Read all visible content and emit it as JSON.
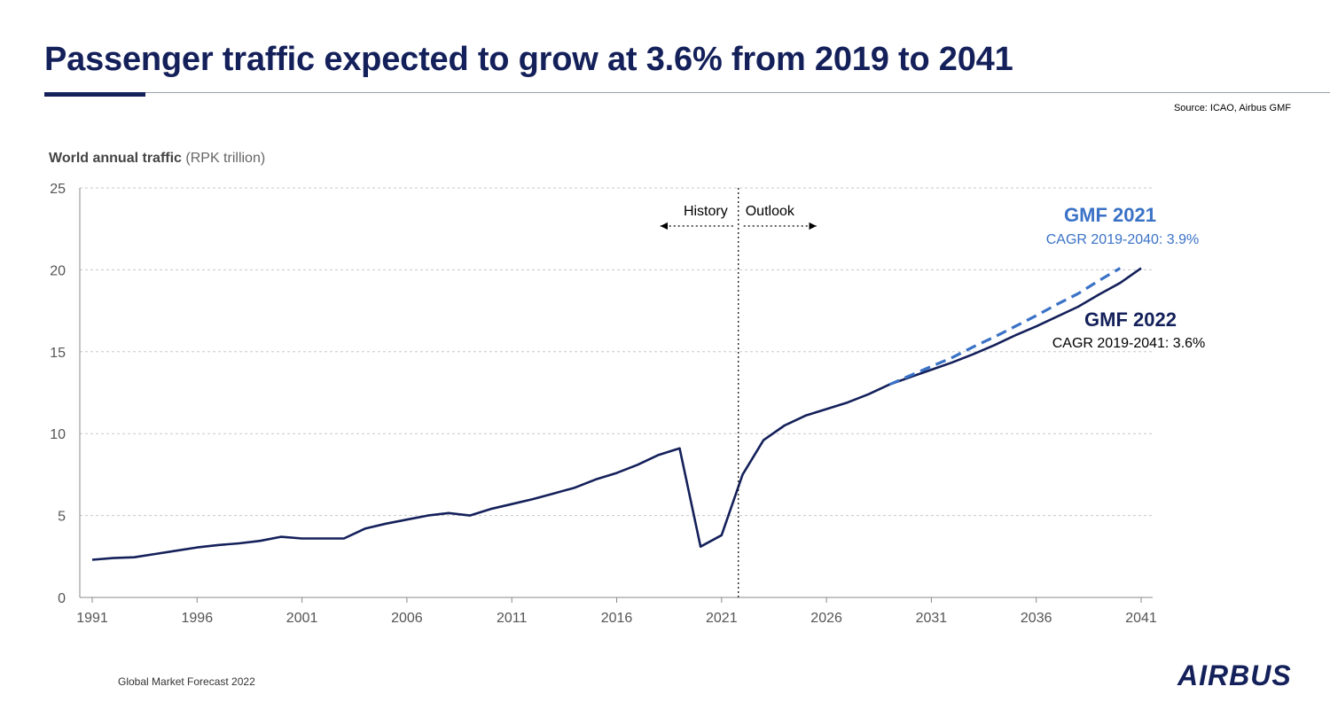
{
  "title": "Passenger traffic expected to grow at 3.6% from 2019 to 2041",
  "source": "Source: ICAO, Airbus GMF",
  "footer": "Global Market Forecast 2022",
  "logo": "AIRBUS",
  "colors": {
    "navy": "#14205a",
    "gmf2021": "#3a72c6",
    "grid": "#c8c8c8",
    "axis_text": "#555555"
  },
  "chart_data": {
    "type": "line",
    "ylabel_bold": "World annual traffic",
    "ylabel_unit": "(RPK trillion)",
    "xlim": [
      1991,
      2041
    ],
    "ylim": [
      0,
      25
    ],
    "x_ticks": [
      1991,
      1996,
      2001,
      2006,
      2011,
      2016,
      2021,
      2026,
      2031,
      2036,
      2041
    ],
    "y_ticks": [
      0,
      5,
      10,
      15,
      20,
      25
    ],
    "grid": "horizontal-dashed",
    "divider_x": 2021.8,
    "divider_labels": {
      "left": "History",
      "right": "Outlook"
    },
    "annotations": {
      "gmf2021_name": "GMF 2021",
      "gmf2021_cagr": "CAGR 2019-2040: 3.9%",
      "gmf2022_name": "GMF 2022",
      "gmf2022_cagr": "CAGR 2019-2041: 3.6%"
    },
    "series": [
      {
        "key": "gmf2022",
        "style": "solid",
        "x": [
          1991,
          1992,
          1993,
          1994,
          1995,
          1996,
          1997,
          1998,
          1999,
          2000,
          2001,
          2002,
          2003,
          2004,
          2005,
          2006,
          2007,
          2008,
          2009,
          2010,
          2011,
          2012,
          2013,
          2014,
          2015,
          2016,
          2017,
          2018,
          2019,
          2020,
          2021,
          2022,
          2023,
          2024,
          2025,
          2026,
          2027,
          2028,
          2029,
          2030,
          2031,
          2032,
          2033,
          2034,
          2035,
          2036,
          2037,
          2038,
          2039,
          2040,
          2041
        ],
        "y": [
          2.3,
          2.4,
          2.45,
          2.65,
          2.85,
          3.05,
          3.2,
          3.3,
          3.45,
          3.7,
          3.6,
          3.6,
          3.6,
          4.2,
          4.5,
          4.75,
          5.0,
          5.15,
          5.0,
          5.4,
          5.7,
          6.0,
          6.35,
          6.7,
          7.2,
          7.6,
          8.1,
          8.7,
          9.1,
          3.1,
          3.8,
          7.5,
          9.6,
          10.5,
          11.1,
          11.5,
          11.9,
          12.4,
          13.0,
          13.45,
          13.9,
          14.35,
          14.85,
          15.4,
          16.0,
          16.55,
          17.15,
          17.75,
          18.5,
          19.2,
          20.1
        ]
      },
      {
        "key": "gmf2021",
        "style": "dashed",
        "x": [
          2029,
          2030,
          2031,
          2032,
          2033,
          2034,
          2035,
          2036,
          2037,
          2038,
          2039,
          2040
        ],
        "y": [
          13.0,
          13.55,
          14.1,
          14.65,
          15.3,
          15.9,
          16.55,
          17.2,
          17.9,
          18.55,
          19.35,
          20.1
        ]
      }
    ]
  }
}
